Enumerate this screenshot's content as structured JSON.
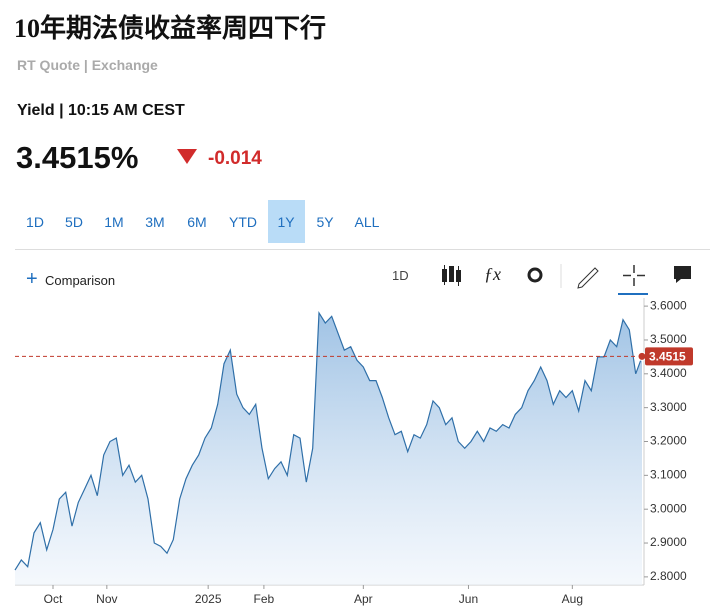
{
  "header": {
    "title": "10年期法债收益率周四下行",
    "source": "RT Quote | Exchange",
    "subtitle": "Yield | 10:15 AM CEST",
    "price": "3.4515%",
    "change": "-0.014"
  },
  "ranges": [
    "1D",
    "5D",
    "1M",
    "3M",
    "6M",
    "YTD",
    "1Y",
    "5Y",
    "ALL"
  ],
  "active_range": "1Y",
  "toolbar": {
    "comparison": "Comparison",
    "interval": "1D"
  },
  "chart_data": {
    "type": "area",
    "color": "#2f6fa8",
    "last_value": 3.4515,
    "last_color": "#c0392b",
    "values": [
      2.82,
      2.85,
      2.83,
      2.93,
      2.96,
      2.88,
      2.94,
      3.03,
      3.05,
      2.95,
      3.02,
      3.06,
      3.1,
      3.04,
      3.16,
      3.2,
      3.21,
      3.1,
      3.13,
      3.08,
      3.1,
      3.03,
      2.9,
      2.89,
      2.87,
      2.91,
      3.03,
      3.09,
      3.13,
      3.16,
      3.21,
      3.24,
      3.31,
      3.43,
      3.47,
      3.34,
      3.3,
      3.28,
      3.31,
      3.18,
      3.09,
      3.12,
      3.14,
      3.1,
      3.22,
      3.21,
      3.08,
      3.18,
      3.58,
      3.55,
      3.57,
      3.52,
      3.47,
      3.48,
      3.44,
      3.42,
      3.38,
      3.38,
      3.33,
      3.27,
      3.22,
      3.23,
      3.17,
      3.22,
      3.21,
      3.25,
      3.32,
      3.3,
      3.25,
      3.27,
      3.2,
      3.18,
      3.2,
      3.23,
      3.2,
      3.24,
      3.23,
      3.25,
      3.24,
      3.28,
      3.3,
      3.35,
      3.38,
      3.42,
      3.38,
      3.31,
      3.35,
      3.33,
      3.35,
      3.29,
      3.38,
      3.35,
      3.45,
      3.45,
      3.5,
      3.48,
      3.56,
      3.53,
      3.4,
      3.45
    ],
    "xlim": [
      0,
      99
    ],
    "xticks": [
      {
        "value": 6,
        "label": "Oct"
      },
      {
        "value": 14.5,
        "label": "Nov"
      },
      {
        "value": 30.5,
        "label": "2025"
      },
      {
        "value": 39.3,
        "label": "Feb"
      },
      {
        "value": 55,
        "label": "Apr"
      },
      {
        "value": 71.6,
        "label": "Jun"
      },
      {
        "value": 88,
        "label": "Aug"
      }
    ],
    "ylim": [
      2.776,
      3.624
    ],
    "yticks": [
      {
        "value": 3.6,
        "label": "3.6000"
      },
      {
        "value": 3.5,
        "label": "3.5000"
      },
      {
        "value": 3.4,
        "label": "3.4000"
      },
      {
        "value": 3.3,
        "label": "3.3000"
      },
      {
        "value": 3.2,
        "label": "3.2000"
      },
      {
        "value": 3.1,
        "label": "3.1000"
      },
      {
        "value": 3.0,
        "label": "3.0000"
      },
      {
        "value": 2.9,
        "label": "2.9000"
      },
      {
        "value": 2.8,
        "label": "2.8000"
      }
    ]
  }
}
